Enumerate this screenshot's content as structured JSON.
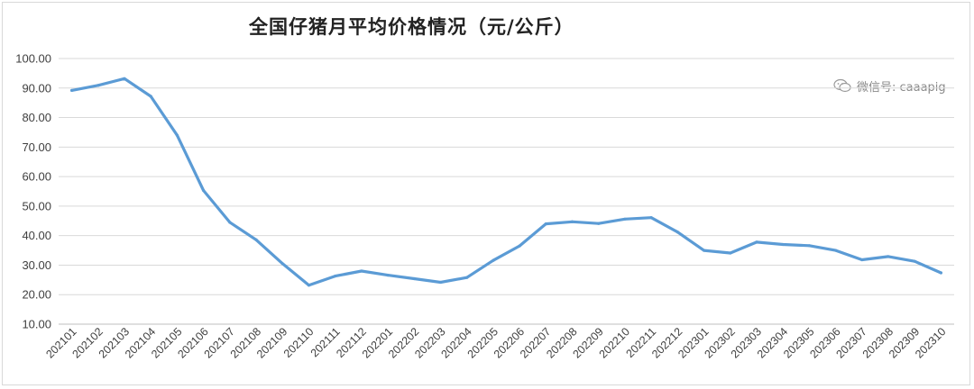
{
  "chart_data": {
    "type": "line",
    "title": "全国仔猪月平均价格情况（元/公斤）",
    "watermark": "微信号: caaapig",
    "watermark_icon": "wechat-icon",
    "xlabel": "",
    "ylabel": "",
    "ylim": [
      10,
      100
    ],
    "y_ticks": [
      "10.00",
      "20.00",
      "30.00",
      "40.00",
      "50.00",
      "60.00",
      "70.00",
      "80.00",
      "90.00",
      "100.00"
    ],
    "grid": true,
    "legend": "none",
    "line_color": "#5b9bd5",
    "categories": [
      "202101",
      "202102",
      "202103",
      "202104",
      "202105",
      "202106",
      "202107",
      "202108",
      "202109",
      "202110",
      "202111",
      "202112",
      "202201",
      "202202",
      "202203",
      "202204",
      "202205",
      "202206",
      "202207",
      "202208",
      "202209",
      "202210",
      "202211",
      "202212",
      "202301",
      "202302",
      "202303",
      "202304",
      "202305",
      "202306",
      "202307",
      "202308",
      "202309",
      "202310"
    ],
    "series": [
      {
        "values": [
          89.2,
          90.9,
          93.2,
          87.2,
          74.0,
          55.3,
          44.5,
          38.6,
          30.5,
          23.2,
          26.3,
          28.0,
          26.6,
          25.4,
          24.2,
          25.8,
          31.6,
          36.5,
          44.0,
          44.7,
          44.1,
          45.6,
          46.1,
          41.2,
          35.0,
          34.1,
          37.8,
          37.0,
          36.6,
          35.0,
          31.8,
          32.9,
          31.3,
          27.4
        ]
      }
    ]
  }
}
